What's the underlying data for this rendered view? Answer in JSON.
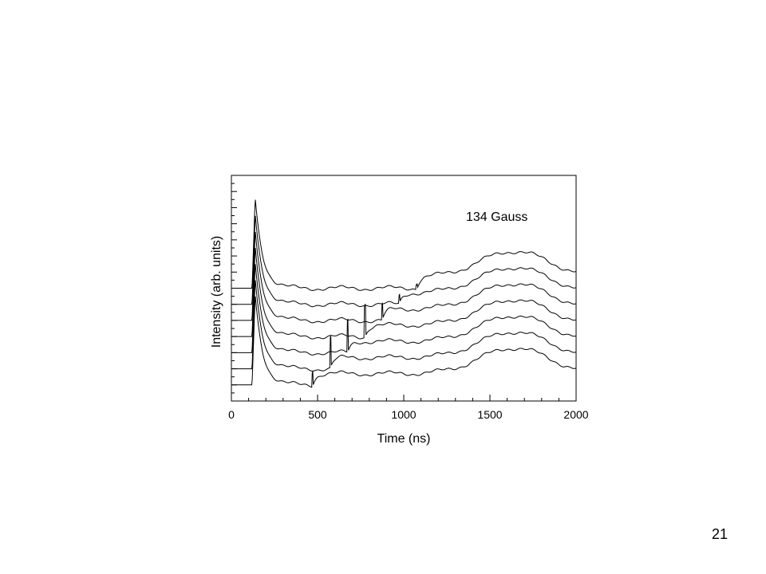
{
  "slide": {
    "number": "21"
  },
  "chart_data": {
    "type": "line",
    "xlabel": "Time (ns)",
    "ylabel": "Intensity (arb. units)",
    "annotation": "134 Gauss",
    "xlim": [
      0,
      2000
    ],
    "x_ticks": [
      0,
      500,
      1000,
      1500,
      2000
    ],
    "x_tick_labels": [
      "0",
      "500",
      "1000",
      "1500",
      "2000"
    ],
    "ylim": [
      0,
      14
    ],
    "y_tick_labels_shown": false,
    "grid": false,
    "legend": "none",
    "color": "#000000",
    "series": [
      {
        "baseline": 1.0,
        "spike_x": 470,
        "spike_height": 0.9
      },
      {
        "baseline": 2.0,
        "spike_x": 575,
        "spike_height": 1.9
      },
      {
        "baseline": 3.0,
        "spike_x": 675,
        "spike_height": 2.0
      },
      {
        "baseline": 4.0,
        "spike_x": 775,
        "spike_height": 2.0
      },
      {
        "baseline": 5.0,
        "spike_x": 875,
        "spike_height": 1.0
      },
      {
        "baseline": 6.0,
        "spike_x": 975,
        "spike_height": 0.5
      },
      {
        "baseline": 7.0,
        "spike_x": 1075,
        "spike_height": 0.3
      }
    ]
  }
}
